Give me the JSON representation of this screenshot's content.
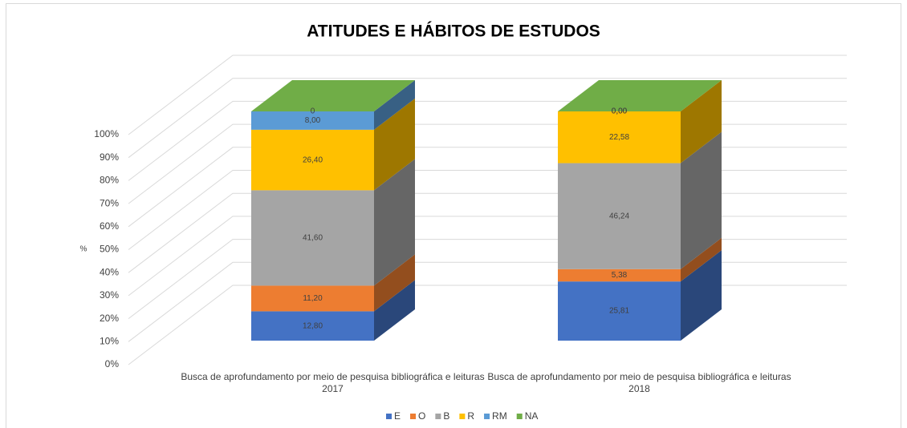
{
  "chart_data": {
    "type": "bar3d_stacked",
    "title": "ATITUDES E HÁBITOS DE ESTUDOS",
    "y_label": "%",
    "categories": [
      "Busca de aprofundamento por meio de pesquisa bibliográfica e leituras 2017",
      "Busca de aprofundamento por meio de pesquisa bibliográfica e leituras 2018"
    ],
    "series": [
      {
        "name": "E",
        "color": "#4472c4",
        "values": [
          12.8,
          25.81
        ],
        "value_labels": [
          "12,80",
          "25,81"
        ]
      },
      {
        "name": "O",
        "color": "#ed7d31",
        "values": [
          11.2,
          5.38
        ],
        "value_labels": [
          "11,20",
          "5,38"
        ]
      },
      {
        "name": "B",
        "color": "#a5a5a5",
        "values": [
          41.6,
          46.24
        ],
        "value_labels": [
          "41,60",
          "46,24"
        ]
      },
      {
        "name": "R",
        "color": "#ffc000",
        "values": [
          26.4,
          22.58
        ],
        "value_labels": [
          "26,40",
          "22,58"
        ]
      },
      {
        "name": "RM",
        "color": "#5b9bd5",
        "values": [
          8.0,
          0.0
        ],
        "value_labels": [
          "8,00",
          "0,00"
        ]
      },
      {
        "name": "NA",
        "color": "#70ad47",
        "values": [
          0,
          0.0
        ],
        "value_labels": [
          "0",
          "0,00"
        ]
      }
    ],
    "ylim": [
      0,
      100
    ],
    "yticks": [
      {
        "value": 0,
        "label": "0%"
      },
      {
        "value": 10,
        "label": "10%"
      },
      {
        "value": 20,
        "label": "20%"
      },
      {
        "value": 30,
        "label": "30%"
      },
      {
        "value": 40,
        "label": "40%"
      },
      {
        "value": 50,
        "label": "50%"
      },
      {
        "value": 60,
        "label": "60%"
      },
      {
        "value": 70,
        "label": "70%"
      },
      {
        "value": 80,
        "label": "80%"
      },
      {
        "value": 90,
        "label": "90%"
      },
      {
        "value": 100,
        "label": "100%"
      }
    ],
    "grid": true,
    "legend": "bottom"
  }
}
